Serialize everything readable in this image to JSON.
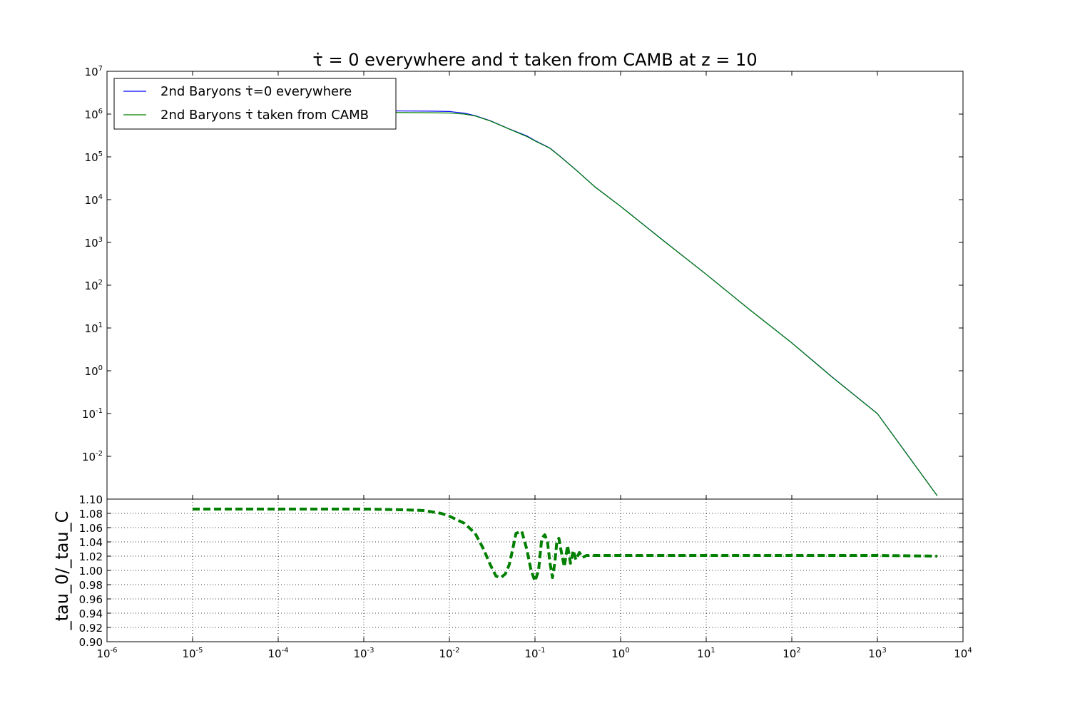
{
  "figure": {
    "title": "τ̇ = 0 everywhere and τ̇  taken from CAMB at z = 10"
  },
  "chart_data": [
    {
      "type": "line",
      "title": "τ̇ = 0 everywhere and τ̇  taken from CAMB at z = 10",
      "xscale": "log",
      "yscale": "log",
      "xlim": [
        1e-06,
        10000.0
      ],
      "ylim": [
        0.001,
        10000000.0
      ],
      "x_tick_labels": [
        "10-6",
        "10-5",
        "10-4",
        "10-3",
        "10-2",
        "10-1",
        "100",
        "101",
        "102",
        "103",
        "104"
      ],
      "y_tick_labels": [
        "10-2",
        "10-1",
        "100",
        "101",
        "102",
        "103",
        "104",
        "105",
        "106",
        "107"
      ],
      "grid": false,
      "legend_position": "top-left",
      "series": [
        {
          "name": "2nd Baryons τ̇=0 everywhere",
          "color": "#0000ff",
          "x": [
            1e-05,
            0.0001,
            0.001,
            0.003,
            0.006,
            0.01,
            0.015,
            0.02,
            0.03,
            0.05,
            0.08,
            0.1,
            0.15,
            0.2,
            0.3,
            0.5,
            1,
            3,
            10,
            30,
            100,
            300,
            1000,
            5000
          ],
          "y": [
            1200000,
            1200000,
            1200000,
            1180000,
            1170000,
            1150000,
            1050000,
            920000,
            700000,
            450000,
            310000,
            240000,
            160000,
            100000,
            50000,
            20000,
            7000,
            1200,
            180,
            30,
            4.5,
            0.7,
            0.1,
            0.0012
          ]
        },
        {
          "name": "2nd Baryons τ̇ taken from CAMB",
          "color": "#008000",
          "x": [
            1e-05,
            0.0001,
            0.001,
            0.003,
            0.006,
            0.01,
            0.015,
            0.02,
            0.03,
            0.05,
            0.08,
            0.1,
            0.15,
            0.2,
            0.3,
            0.5,
            1,
            3,
            10,
            30,
            100,
            300,
            1000,
            5000
          ],
          "y": [
            1100000,
            1100000,
            1100000,
            1085000,
            1075000,
            1060000,
            1000000,
            900000,
            690000,
            445000,
            300000,
            235000,
            158000,
            99000,
            49500,
            19900,
            6950,
            1190,
            179,
            29.8,
            4.47,
            0.69,
            0.099,
            0.00119
          ]
        }
      ]
    },
    {
      "type": "line",
      "ylabel": "_tau_0/_tau_C",
      "xscale": "log",
      "xlim": [
        1e-06,
        10000.0
      ],
      "ylim": [
        0.9,
        1.1
      ],
      "x_tick_labels": [
        "10-6",
        "10-5",
        "10-4",
        "10-3",
        "10-2",
        "10-1",
        "100",
        "101",
        "102",
        "103",
        "104"
      ],
      "y_tick_labels": [
        "0.90",
        "0.92",
        "0.94",
        "0.96",
        "0.98",
        "1.00",
        "1.02",
        "1.04",
        "1.06",
        "1.08",
        "1.10"
      ],
      "grid": true,
      "series": [
        {
          "style": "dashed",
          "color": "#008000",
          "x": [
            1e-05,
            0.0001,
            0.001,
            0.003,
            0.005,
            0.008,
            0.01,
            0.015,
            0.02,
            0.025,
            0.03,
            0.035,
            0.04,
            0.045,
            0.05,
            0.055,
            0.06,
            0.07,
            0.08,
            0.09,
            0.1,
            0.11,
            0.12,
            0.13,
            0.14,
            0.15,
            0.16,
            0.17,
            0.18,
            0.19,
            0.2,
            0.22,
            0.24,
            0.26,
            0.28,
            0.3,
            0.33,
            0.36,
            0.4,
            0.5,
            1,
            10,
            100,
            1000,
            5000
          ],
          "y": [
            1.086,
            1.086,
            1.086,
            1.085,
            1.084,
            1.08,
            1.076,
            1.066,
            1.052,
            1.03,
            1.008,
            0.992,
            0.99,
            0.995,
            1.008,
            1.03,
            1.052,
            1.055,
            1.03,
            1.0,
            0.985,
            1.0,
            1.045,
            1.05,
            1.04,
            1.01,
            0.99,
            1.01,
            1.04,
            1.045,
            1.03,
            1.005,
            1.035,
            1.01,
            1.028,
            1.015,
            1.025,
            1.018,
            1.021,
            1.021,
            1.021,
            1.021,
            1.021,
            1.021,
            1.02
          ]
        }
      ]
    }
  ]
}
